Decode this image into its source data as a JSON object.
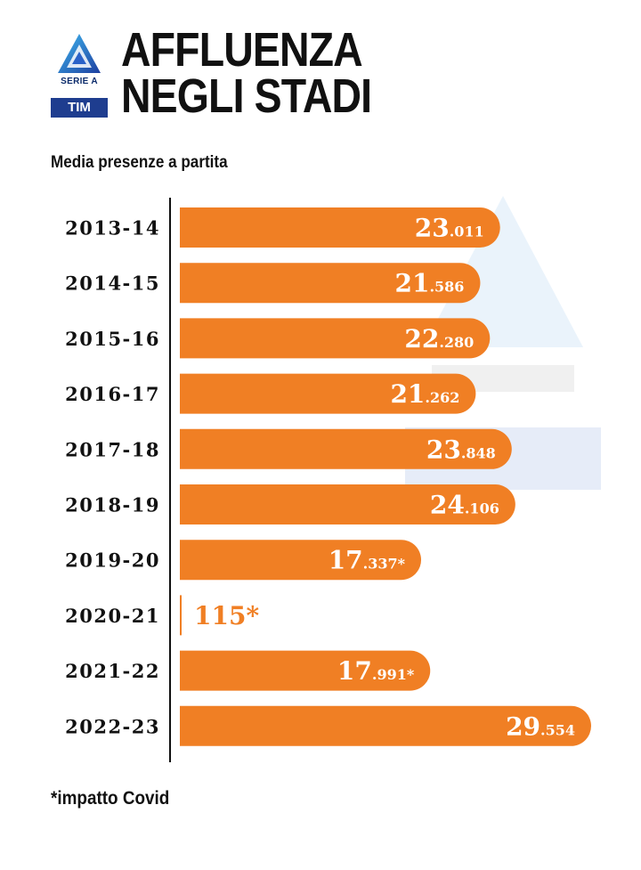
{
  "title_lines": [
    "AFFLUENZA",
    "NEGLI STADI"
  ],
  "subtitle": "Media presenze a partita",
  "footnote": "*impatto Covid",
  "logo": {
    "text": "SERIE A",
    "box": "TIM",
    "icon": "serie-a-logo"
  },
  "colors": {
    "bar": "#f07f24",
    "text": "#111111",
    "value_light": "#ffffff"
  },
  "chart_data": {
    "type": "bar",
    "orientation": "horizontal",
    "title": "AFFLUENZA NEGLI STADI",
    "subtitle": "Media presenze a partita",
    "categories": [
      "2013-14",
      "2014-15",
      "2015-16",
      "2016-17",
      "2017-18",
      "2018-19",
      "2019-20",
      "2020-21",
      "2021-22",
      "2022-23"
    ],
    "values": [
      23011,
      21586,
      22280,
      21262,
      23848,
      24106,
      17337,
      115,
      17991,
      29554
    ],
    "labels": [
      {
        "big": "23",
        "small": ".011"
      },
      {
        "big": "21",
        "small": ".586"
      },
      {
        "big": "22",
        "small": ".280"
      },
      {
        "big": "21",
        "small": ".262"
      },
      {
        "big": "23",
        "small": ".848"
      },
      {
        "big": "24",
        "small": ".106"
      },
      {
        "big": "17",
        "small": ".337*"
      },
      {
        "big": "115*",
        "small": ""
      },
      {
        "big": "17",
        "small": ".991*"
      },
      {
        "big": "29",
        "small": ".554"
      }
    ],
    "xlim": [
      0,
      29554
    ],
    "grid": false,
    "legend": "none"
  }
}
